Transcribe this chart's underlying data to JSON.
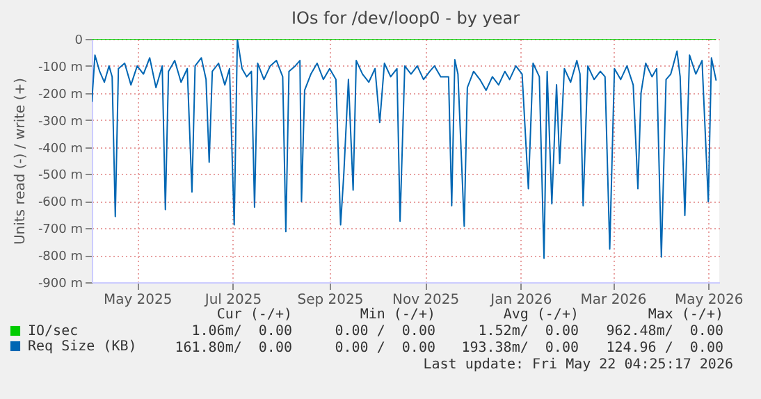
{
  "chart_data": {
    "type": "line",
    "title": "IOs for /dev/loop0 - by year",
    "ylabel": "Units read (-) / write (+)",
    "xlim": [
      "2025-04-17",
      "2026-05-23"
    ],
    "xticks": [
      {
        "value": "2025-05-16",
        "label": "May 2025"
      },
      {
        "value": "2025-07-16",
        "label": "Jul 2025"
      },
      {
        "value": "2025-09-16",
        "label": "Sep 2025"
      },
      {
        "value": "2025-11-16",
        "label": "Nov 2025"
      },
      {
        "value": "2026-01-16",
        "label": "Jan 2026"
      },
      {
        "value": "2026-03-16",
        "label": "Mar 2026"
      },
      {
        "value": "2026-05-16",
        "label": "May 2026"
      }
    ],
    "ylim": [
      -900,
      0
    ],
    "yticks": [
      0,
      {
        "value": -100,
        "label": "-100 m"
      },
      {
        "value": -200,
        "label": "-200 m"
      },
      {
        "value": -300,
        "label": "-300 m"
      },
      {
        "value": -400,
        "label": "-400 m"
      },
      {
        "value": -500,
        "label": "-500 m"
      },
      {
        "value": -600,
        "label": "-600 m"
      },
      {
        "value": -700,
        "label": "-700 m"
      },
      {
        "value": -800,
        "label": "-800 m"
      },
      {
        "value": -900,
        "label": "-900 m"
      }
    ],
    "grid": true,
    "legend": "bottom left",
    "series": [
      {
        "name": "Req Size (KB)",
        "color": "#0066b3",
        "x": [
          "2025-04-17",
          "2025-04-19",
          "2025-04-22",
          "2025-04-25",
          "2025-04-28",
          "2025-04-30",
          "2025-05-02",
          "2025-05-04",
          "2025-05-08",
          "2025-05-12",
          "2025-05-16",
          "2025-05-20",
          "2025-05-24",
          "2025-05-28",
          "2025-06-01",
          "2025-06-03",
          "2025-06-05",
          "2025-06-09",
          "2025-06-13",
          "2025-06-17",
          "2025-06-20",
          "2025-06-22",
          "2025-06-26",
          "2025-06-29",
          "2025-07-01",
          "2025-07-03",
          "2025-07-07",
          "2025-07-11",
          "2025-07-14",
          "2025-07-17",
          "2025-07-19",
          "2025-07-22",
          "2025-07-25",
          "2025-07-28",
          "2025-07-30",
          "2025-08-01",
          "2025-08-05",
          "2025-08-09",
          "2025-08-13",
          "2025-08-17",
          "2025-08-19",
          "2025-08-21",
          "2025-08-25",
          "2025-08-28",
          "2025-08-29",
          "2025-08-31",
          "2025-09-04",
          "2025-09-08",
          "2025-09-12",
          "2025-09-16",
          "2025-09-20",
          "2025-09-23",
          "2025-09-25",
          "2025-09-28",
          "2025-10-01",
          "2025-10-03",
          "2025-10-07",
          "2025-10-11",
          "2025-10-15",
          "2025-10-18",
          "2025-10-21",
          "2025-10-25",
          "2025-10-29",
          "2025-10-31",
          "2025-11-03",
          "2025-11-07",
          "2025-11-11",
          "2025-11-15",
          "2025-11-19",
          "2025-11-22",
          "2025-11-26",
          "2025-12-01",
          "2025-12-03",
          "2025-12-05",
          "2025-12-07",
          "2025-12-11",
          "2025-12-13",
          "2025-12-17",
          "2025-12-21",
          "2025-12-25",
          "2025-12-29",
          "2026-01-02",
          "2026-01-06",
          "2026-01-09",
          "2026-01-13",
          "2026-01-17",
          "2026-01-21",
          "2026-01-24",
          "2026-01-28",
          "2026-01-31",
          "2026-02-02",
          "2026-02-05",
          "2026-02-08",
          "2026-02-10",
          "2026-02-13",
          "2026-02-17",
          "2026-02-21",
          "2026-02-23",
          "2026-02-25",
          "2026-02-28",
          "2026-03-04",
          "2026-03-08",
          "2026-03-11",
          "2026-03-14",
          "2026-03-17",
          "2026-03-21",
          "2026-03-25",
          "2026-03-29",
          "2026-04-01",
          "2026-04-03",
          "2026-04-06",
          "2026-04-10",
          "2026-04-13",
          "2026-04-16",
          "2026-04-19",
          "2026-04-22",
          "2026-04-26",
          "2026-04-28",
          "2026-05-01",
          "2026-05-04",
          "2026-05-08",
          "2026-05-12",
          "2026-05-16",
          "2026-05-18",
          "2026-05-21"
        ],
        "values": [
          -233,
          -60,
          -120,
          -160,
          -100,
          -140,
          -657,
          -110,
          -90,
          -170,
          -100,
          -130,
          -70,
          -180,
          -100,
          -631,
          -120,
          -80,
          -160,
          -110,
          -566,
          -100,
          -70,
          -150,
          -456,
          -120,
          -90,
          -170,
          -110,
          -688,
          -1,
          -110,
          -140,
          -120,
          -622,
          -90,
          -150,
          -100,
          -80,
          -140,
          -713,
          -120,
          -100,
          -80,
          -602,
          -190,
          -130,
          -90,
          -150,
          -110,
          -150,
          -688,
          -505,
          -150,
          -559,
          -80,
          -130,
          -160,
          -110,
          -309,
          -90,
          -140,
          -110,
          -674,
          -100,
          -130,
          -100,
          -150,
          -120,
          -100,
          -140,
          -140,
          -617,
          -77,
          -130,
          -693,
          -180,
          -120,
          -150,
          -190,
          -140,
          -170,
          -120,
          -150,
          -100,
          -130,
          -554,
          -90,
          -140,
          -811,
          -120,
          -610,
          -170,
          -461,
          -110,
          -160,
          -80,
          -130,
          -617,
          -100,
          -150,
          -120,
          -140,
          -777,
          -110,
          -150,
          -100,
          -170,
          -554,
          -200,
          -90,
          -140,
          -110,
          -807,
          -150,
          -130,
          -45,
          -140,
          -653,
          -60,
          -130,
          -80,
          -602,
          -70,
          -154
        ]
      },
      {
        "name": "IO/sec",
        "color": "#00cc00",
        "x": [
          "2025-04-17",
          "2026-05-21"
        ],
        "values": [
          0,
          0
        ]
      }
    ],
    "annotations": [
      "Cur (-/+)",
      "Min (-/+)",
      "Avg (-/+)",
      "Max (-/+)",
      "1.06m/  0.00",
      "0.00 /  0.00",
      "1.52m/  0.00",
      "962.48m/  0.00",
      "161.80m/  0.00",
      "0.00 /  0.00",
      "193.38m/  0.00",
      "124.96 /  0.00",
      "Last update: Fri May 22 04:25:17 2026"
    ]
  }
}
